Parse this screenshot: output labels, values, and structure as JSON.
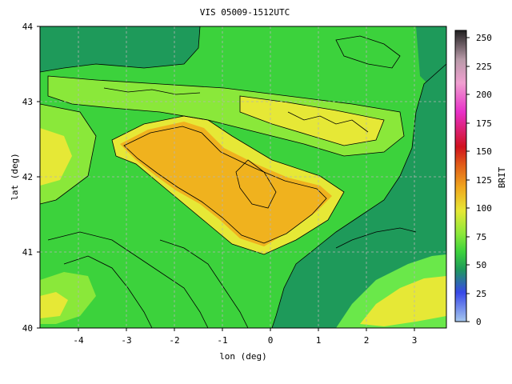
{
  "title": "VIS 05009-1512UTC",
  "xlabel": "lon (deg)",
  "ylabel": "lat (deg)",
  "colorbar_label": "BRIT",
  "x_ticks": [
    "-4",
    "-3",
    "-2",
    "-1",
    "0",
    "1",
    "2",
    "3"
  ],
  "y_ticks": [
    "44",
    "43",
    "42",
    "41",
    "40"
  ],
  "cb_ticks": [
    "250",
    "225",
    "200",
    "175",
    "150",
    "125",
    "100",
    "75",
    "50",
    "25",
    "0"
  ],
  "colors": {
    "sea": "#1e9a5a",
    "land_green": "#3cd23c",
    "bright_green": "#6ae84a",
    "yellow": "#e6e836",
    "orange": "#f0b21e",
    "contour": "#000000"
  },
  "chart_data": {
    "type": "heatmap",
    "title": "VIS 05009-1512UTC",
    "xlabel": "lon (deg)",
    "ylabel": "lat (deg)",
    "xlim": [
      -4.8,
      3.7
    ],
    "ylim": [
      40,
      44
    ],
    "colorbar": {
      "label": "BRIT",
      "range": [
        0,
        255
      ],
      "ticks": [
        0,
        25,
        50,
        75,
        100,
        125,
        150,
        175,
        200,
        225,
        250
      ]
    },
    "grid": true
  }
}
